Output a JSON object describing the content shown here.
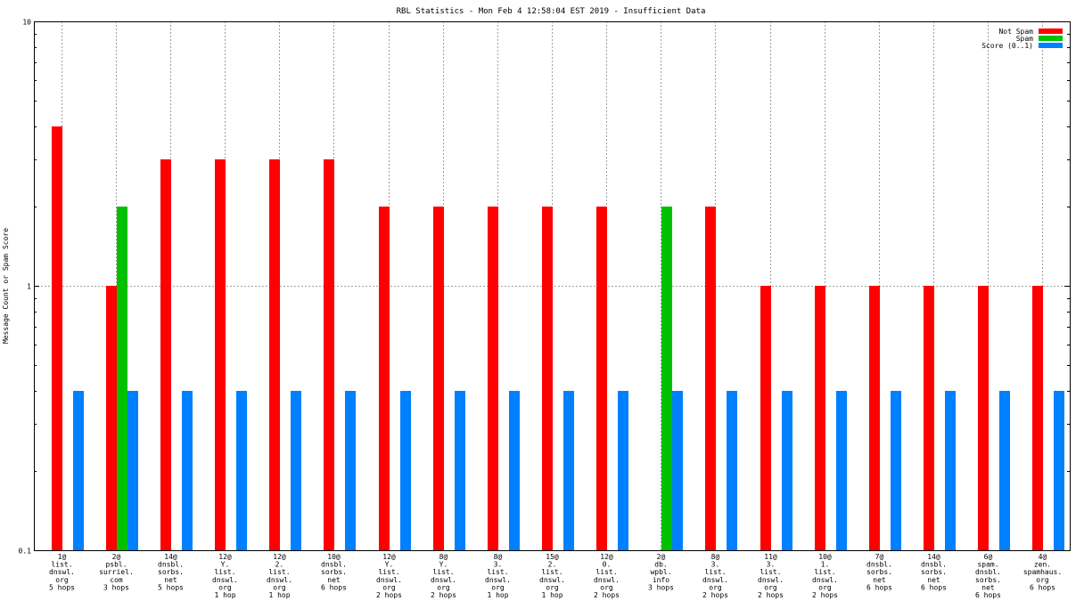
{
  "chart_data": {
    "type": "bar",
    "title": "RBL Statistics - Mon Feb  4 12:58:04 EST 2019 - Insufficient Data",
    "xlabel": "",
    "ylabel": "Message Count or Spam Score",
    "yscale": "log",
    "ylim": [
      0.1,
      10
    ],
    "yticks": [
      "0.1",
      "1",
      "10"
    ],
    "grid": true,
    "legend_position": "top-right",
    "categories": [
      [
        "1@",
        "list.",
        "dnswl.",
        "org",
        "5 hops"
      ],
      [
        "2@",
        "psbl.",
        "surriel.",
        "com",
        "3 hops"
      ],
      [
        "14@",
        "dnsbl.",
        "sorbs.",
        "net",
        "5 hops"
      ],
      [
        "12@",
        "Y.",
        "list.",
        "dnswl.",
        "org",
        "1 hop"
      ],
      [
        "12@",
        "2.",
        "list.",
        "dnswl.",
        "org",
        "1 hop"
      ],
      [
        "10@",
        "dnsbl.",
        "sorbs.",
        "net",
        "6 hops"
      ],
      [
        "12@",
        "Y.",
        "list.",
        "dnswl.",
        "org",
        "2 hops"
      ],
      [
        "8@",
        "Y.",
        "list.",
        "dnswl.",
        "org",
        "2 hops"
      ],
      [
        "8@",
        "3.",
        "list.",
        "dnswl.",
        "org",
        "1 hop"
      ],
      [
        "15@",
        "2.",
        "list.",
        "dnswl.",
        "org",
        "1 hop"
      ],
      [
        "12@",
        "0.",
        "list.",
        "dnswl.",
        "org",
        "2 hops"
      ],
      [
        "2@",
        "db.",
        "wpbl.",
        "info",
        "3 hops"
      ],
      [
        "8@",
        "3.",
        "list.",
        "dnswl.",
        "org",
        "2 hops"
      ],
      [
        "11@",
        "3.",
        "list.",
        "dnswl.",
        "org",
        "2 hops"
      ],
      [
        "10@",
        "1.",
        "list.",
        "dnswl.",
        "org",
        "2 hops"
      ],
      [
        "7@",
        "dnsbl.",
        "sorbs.",
        "net",
        "6 hops"
      ],
      [
        "14@",
        "dnsbl.",
        "sorbs.",
        "net",
        "6 hops"
      ],
      [
        "6@",
        "spam.",
        "dnsbl.",
        "sorbs.",
        "net",
        "6 hops"
      ],
      [
        "4@",
        "zen.",
        "spamhaus.",
        "org",
        "6 hops"
      ]
    ],
    "series": [
      {
        "name": "Not Spam",
        "color": "#ff0000",
        "values": [
          4,
          1,
          3,
          3,
          3,
          3,
          2,
          2,
          2,
          2,
          2,
          null,
          2,
          1,
          1,
          1,
          1,
          1,
          1
        ]
      },
      {
        "name": "Spam",
        "color": "#00c000",
        "values": [
          null,
          2,
          null,
          null,
          null,
          null,
          null,
          null,
          null,
          null,
          null,
          2,
          null,
          null,
          null,
          null,
          null,
          null,
          null
        ]
      },
      {
        "name": "Score (0..1)",
        "color": "#0080ff",
        "values": [
          0.4,
          0.4,
          0.4,
          0.4,
          0.4,
          0.4,
          0.4,
          0.4,
          0.4,
          0.4,
          0.4,
          0.4,
          0.4,
          0.4,
          0.4,
          0.4,
          0.4,
          0.4,
          0.4
        ]
      }
    ]
  }
}
